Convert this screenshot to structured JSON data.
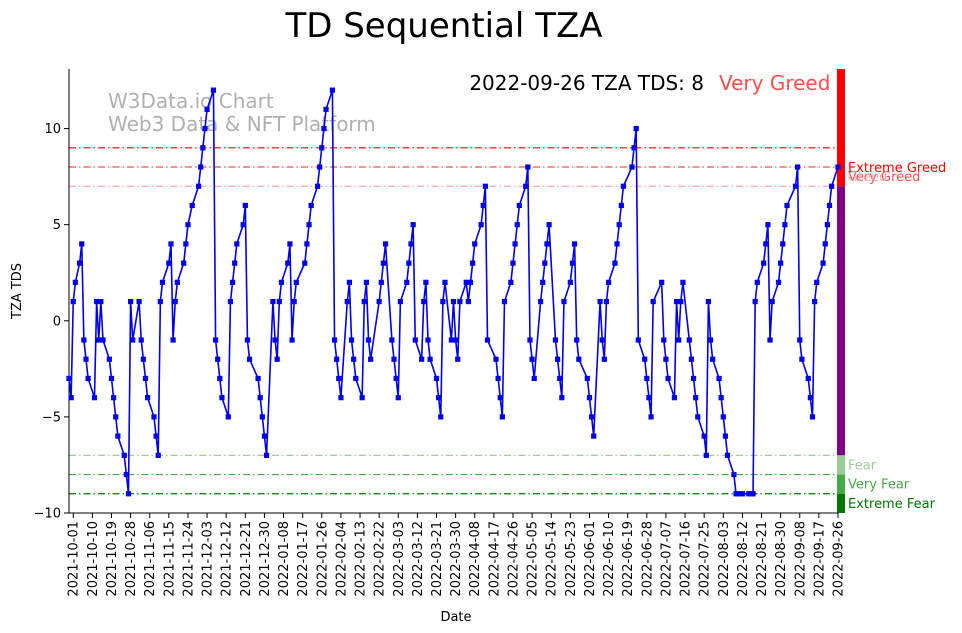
{
  "chart_data": {
    "type": "line",
    "title": "TD Sequential TZA",
    "xlabel": "Date",
    "ylabel": "TZA TDS",
    "ylim": [
      -10,
      13.1
    ],
    "yticks": [
      -10,
      -5,
      0,
      5,
      10
    ],
    "xlim": [
      "2021-09-29",
      "2022-09-26"
    ],
    "xticks": [
      "2021-10-01",
      "2021-10-10",
      "2021-10-19",
      "2021-10-28",
      "2021-11-06",
      "2021-11-15",
      "2021-11-24",
      "2021-12-03",
      "2021-12-12",
      "2021-12-21",
      "2021-12-30",
      "2022-01-08",
      "2022-01-17",
      "2022-01-26",
      "2022-02-04",
      "2022-02-13",
      "2022-02-22",
      "2022-03-03",
      "2022-03-12",
      "2022-03-21",
      "2022-03-30",
      "2022-04-08",
      "2022-04-17",
      "2022-04-26",
      "2022-05-05",
      "2022-05-14",
      "2022-05-23",
      "2022-06-01",
      "2022-06-10",
      "2022-06-19",
      "2022-06-28",
      "2022-07-07",
      "2022-07-16",
      "2022-07-25",
      "2022-08-03",
      "2022-08-12",
      "2022-08-21",
      "2022-08-30",
      "2022-09-08",
      "2022-09-17",
      "2022-09-26"
    ],
    "annotation": {
      "text": "2022-09-26 TZA TDS: 8",
      "status": "Very Greed",
      "status_color": "#ff4d4d"
    },
    "watermark": [
      "W3Data.io Chart",
      "Web3 Data & NFT Platform"
    ],
    "line_color": "#0000ee",
    "levels": [
      {
        "label": "Extreme Greed",
        "value": 9,
        "color": "#ff0000"
      },
      {
        "label": "Very Greed",
        "value": 8,
        "color": "#ff4d4d"
      },
      {
        "label": "Greed",
        "value": 7,
        "color": "#ffaaaa"
      },
      {
        "label": "Fear",
        "value": -7,
        "color": "#99cc99"
      },
      {
        "label": "Very Fear",
        "value": -8,
        "color": "#44aa44"
      },
      {
        "label": "Extreme Fear",
        "value": -9,
        "color": "#007700"
      }
    ],
    "band_colors": {
      "extreme_greed": "#ff0000",
      "middle": "#800080",
      "fear": "#99cc99",
      "very_fear": "#44aa44",
      "extreme_fear": "#007700"
    },
    "series": [
      {
        "x": [
          "2021-09-29",
          "2021-09-30",
          "2021-10-01",
          "2021-10-02",
          "2021-10-04",
          "2021-10-05",
          "2021-10-06",
          "2021-10-07",
          "2021-10-08",
          "2021-10-11",
          "2021-10-12",
          "2021-10-13",
          "2021-10-14",
          "2021-10-15",
          "2021-10-18",
          "2021-10-19",
          "2021-10-20",
          "2021-10-21",
          "2021-10-22",
          "2021-10-25",
          "2021-10-26",
          "2021-10-27",
          "2021-10-28",
          "2021-10-29",
          "2021-11-01",
          "2021-11-02",
          "2021-11-03",
          "2021-11-04",
          "2021-11-05",
          "2021-11-08",
          "2021-11-09",
          "2021-11-10",
          "2021-11-11",
          "2021-11-12",
          "2021-11-15",
          "2021-11-16",
          "2021-11-17",
          "2021-11-18",
          "2021-11-19",
          "2021-11-22",
          "2021-11-23",
          "2021-11-24",
          "2021-11-26",
          "2021-11-29",
          "2021-11-30",
          "2021-12-01",
          "2021-12-02",
          "2021-12-03",
          "2021-12-06",
          "2021-12-07",
          "2021-12-08",
          "2021-12-09",
          "2021-12-10",
          "2021-12-13",
          "2021-12-14",
          "2021-12-15",
          "2021-12-16",
          "2021-12-17",
          "2021-12-20",
          "2021-12-21",
          "2021-12-22",
          "2021-12-23",
          "2021-12-27",
          "2021-12-28",
          "2021-12-29",
          "2021-12-30",
          "2021-12-31",
          "2022-01-03",
          "2022-01-04",
          "2022-01-05",
          "2022-01-06",
          "2022-01-07",
          "2022-01-10",
          "2022-01-11",
          "2022-01-12",
          "2022-01-13",
          "2022-01-14",
          "2022-01-18",
          "2022-01-19",
          "2022-01-20",
          "2022-01-21",
          "2022-01-24",
          "2022-01-25",
          "2022-01-26",
          "2022-01-27",
          "2022-01-28",
          "2022-01-31",
          "2022-02-01",
          "2022-02-02",
          "2022-02-03",
          "2022-02-04",
          "2022-02-07",
          "2022-02-08",
          "2022-02-09",
          "2022-02-10",
          "2022-02-11",
          "2022-02-14",
          "2022-02-15",
          "2022-02-16",
          "2022-02-17",
          "2022-02-18",
          "2022-02-22",
          "2022-02-23",
          "2022-02-24",
          "2022-02-25",
          "2022-02-28",
          "2022-03-01",
          "2022-03-02",
          "2022-03-03",
          "2022-03-04",
          "2022-03-07",
          "2022-03-08",
          "2022-03-09",
          "2022-03-10",
          "2022-03-11",
          "2022-03-14",
          "2022-03-15",
          "2022-03-16",
          "2022-03-17",
          "2022-03-18",
          "2022-03-21",
          "2022-03-22",
          "2022-03-23",
          "2022-03-24",
          "2022-03-25",
          "2022-03-28",
          "2022-03-29",
          "2022-03-30",
          "2022-03-31",
          "2022-04-01",
          "2022-04-04",
          "2022-04-05",
          "2022-04-06",
          "2022-04-07",
          "2022-04-08",
          "2022-04-11",
          "2022-04-12",
          "2022-04-13",
          "2022-04-14",
          "2022-04-18",
          "2022-04-19",
          "2022-04-20",
          "2022-04-21",
          "2022-04-22",
          "2022-04-25",
          "2022-04-26",
          "2022-04-27",
          "2022-04-28",
          "2022-04-29",
          "2022-05-02",
          "2022-05-03",
          "2022-05-04",
          "2022-05-05",
          "2022-05-06",
          "2022-05-09",
          "2022-05-10",
          "2022-05-11",
          "2022-05-12",
          "2022-05-13",
          "2022-05-16",
          "2022-05-17",
          "2022-05-18",
          "2022-05-19",
          "2022-05-20",
          "2022-05-23",
          "2022-05-24",
          "2022-05-25",
          "2022-05-26",
          "2022-05-27",
          "2022-05-31",
          "2022-06-01",
          "2022-06-02",
          "2022-06-03",
          "2022-06-06",
          "2022-06-07",
          "2022-06-08",
          "2022-06-09",
          "2022-06-10",
          "2022-06-13",
          "2022-06-14",
          "2022-06-15",
          "2022-06-16",
          "2022-06-17",
          "2022-06-21",
          "2022-06-22",
          "2022-06-23",
          "2022-06-24",
          "2022-06-27",
          "2022-06-28",
          "2022-06-29",
          "2022-06-30",
          "2022-07-01",
          "2022-07-05",
          "2022-07-06",
          "2022-07-07",
          "2022-07-08",
          "2022-07-11",
          "2022-07-12",
          "2022-07-13",
          "2022-07-14",
          "2022-07-15",
          "2022-07-18",
          "2022-07-19",
          "2022-07-20",
          "2022-07-21",
          "2022-07-22",
          "2022-07-25",
          "2022-07-26",
          "2022-07-27",
          "2022-07-28",
          "2022-07-29",
          "2022-08-01",
          "2022-08-02",
          "2022-08-03",
          "2022-08-04",
          "2022-08-05",
          "2022-08-08",
          "2022-08-09",
          "2022-08-10",
          "2022-08-11",
          "2022-08-12",
          "2022-08-15",
          "2022-08-16",
          "2022-08-17",
          "2022-08-18",
          "2022-08-19",
          "2022-08-22",
          "2022-08-23",
          "2022-08-24",
          "2022-08-25",
          "2022-08-26",
          "2022-08-29",
          "2022-08-30",
          "2022-08-31",
          "2022-09-01",
          "2022-09-02",
          "2022-09-06",
          "2022-09-07",
          "2022-09-08",
          "2022-09-09",
          "2022-09-12",
          "2022-09-13",
          "2022-09-14",
          "2022-09-15",
          "2022-09-16",
          "2022-09-19",
          "2022-09-20",
          "2022-09-21",
          "2022-09-22",
          "2022-09-23",
          "2022-09-26"
        ],
        "values": [
          -3,
          -4,
          1,
          2,
          3,
          4,
          -1,
          -2,
          -3,
          -4,
          1,
          -1,
          1,
          -1,
          -2,
          -3,
          -4,
          -5,
          -6,
          -7,
          -8,
          -9,
          1,
          -1,
          1,
          -1,
          -2,
          -3,
          -4,
          -5,
          -6,
          -7,
          1,
          2,
          3,
          4,
          -1,
          1,
          2,
          3,
          4,
          5,
          6,
          7,
          8,
          9,
          10,
          11,
          12,
          -1,
          -2,
          -3,
          -4,
          -5,
          1,
          2,
          3,
          4,
          5,
          6,
          -1,
          -2,
          -3,
          -4,
          -5,
          -6,
          -7,
          1,
          -1,
          -2,
          1,
          2,
          3,
          4,
          -1,
          1,
          2,
          3,
          4,
          5,
          6,
          7,
          8,
          9,
          10,
          11,
          12,
          -1,
          -2,
          -3,
          -4,
          1,
          2,
          -1,
          -2,
          -3,
          -4,
          1,
          2,
          -1,
          -2,
          1,
          2,
          3,
          4,
          -1,
          -2,
          -3,
          -4,
          1,
          2,
          3,
          4,
          5,
          -1,
          -2,
          1,
          2,
          -1,
          -2,
          -3,
          -4,
          -5,
          1,
          2,
          -1,
          1,
          -1,
          -2,
          1,
          2,
          1,
          2,
          3,
          4,
          5,
          6,
          7,
          -1,
          -2,
          -3,
          -4,
          -5,
          1,
          2,
          3,
          4,
          5,
          6,
          7,
          8,
          -1,
          -2,
          -3,
          1,
          2,
          3,
          4,
          5,
          -1,
          -2,
          -3,
          -4,
          1,
          2,
          3,
          4,
          -1,
          -2,
          -3,
          -4,
          -5,
          -6,
          1,
          -1,
          -2,
          1,
          2,
          3,
          4,
          5,
          6,
          7,
          8,
          9,
          10,
          -1,
          -2,
          -3,
          -4,
          -5,
          1,
          2,
          -1,
          -2,
          -3,
          -4,
          1,
          -1,
          1,
          2,
          -1,
          -2,
          -3,
          -4,
          -5,
          -6,
          -7,
          1,
          -1,
          -2,
          -3,
          -4,
          -5,
          -6,
          -7,
          -8,
          -9,
          -9,
          -9,
          -9,
          -9,
          -9,
          -9,
          1,
          2,
          3,
          4,
          5,
          -1,
          1,
          2,
          3,
          4,
          5,
          6,
          7,
          8,
          -1,
          -2,
          -3,
          -4,
          -5,
          1,
          2,
          3,
          4,
          5,
          6,
          7,
          8
        ]
      }
    ]
  }
}
